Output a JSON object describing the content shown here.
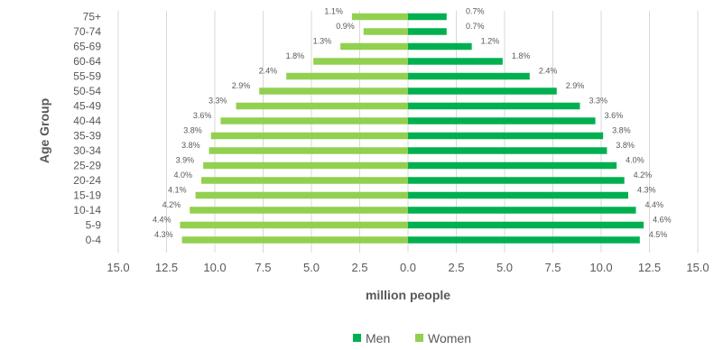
{
  "chart_data": {
    "type": "bar",
    "orientation": "horizontal-population-pyramid",
    "categories": [
      "0-4",
      "5-9",
      "10-14",
      "15-19",
      "20-24",
      "25-29",
      "30-34",
      "35-39",
      "40-44",
      "45-49",
      "50-54",
      "55-59",
      "60-64",
      "65-69",
      "70-74",
      "75+"
    ],
    "series": [
      {
        "name": "Men",
        "color": "#00b050",
        "values": [
          12.0,
          12.2,
          11.8,
          11.4,
          11.2,
          10.8,
          10.3,
          10.1,
          9.7,
          8.9,
          7.7,
          6.3,
          4.9,
          3.3,
          2.0,
          2.0
        ],
        "labels": [
          "4.5%",
          "4.6%",
          "4.4%",
          "4.3%",
          "4.2%",
          "4.0%",
          "3.8%",
          "3.8%",
          "3.6%",
          "3.3%",
          "2.9%",
          "2.4%",
          "1.8%",
          "1.2%",
          "0.7%",
          "0.7%"
        ]
      },
      {
        "name": "Women",
        "color": "#92d050",
        "values": [
          11.7,
          11.8,
          11.3,
          11.0,
          10.7,
          10.6,
          10.3,
          10.2,
          9.7,
          8.9,
          7.7,
          6.3,
          4.9,
          3.5,
          2.3,
          2.9
        ],
        "labels": [
          "4.3%",
          "4.4%",
          "4.2%",
          "4.1%",
          "4.0%",
          "3.9%",
          "3.8%",
          "3.8%",
          "3.6%",
          "3.3%",
          "2.9%",
          "2.4%",
          "1.8%",
          "1.3%",
          "0.9%",
          "1.1%"
        ]
      }
    ],
    "xlabel": "million people",
    "ylabel": "Age Group",
    "xlim": [
      -15,
      15
    ],
    "xticks": [
      -15,
      -12.5,
      -10,
      -7.5,
      -5,
      -2.5,
      0,
      2.5,
      5,
      7.5,
      10,
      12.5,
      15
    ],
    "xtick_labels": [
      "15.0",
      "12.5",
      "10.0",
      "7.5",
      "5.0",
      "2.5",
      "0.0",
      "2.5",
      "5.0",
      "7.5",
      "10.0",
      "12.5",
      "15.0"
    ],
    "grid": "vertical",
    "legend": "bottom"
  }
}
